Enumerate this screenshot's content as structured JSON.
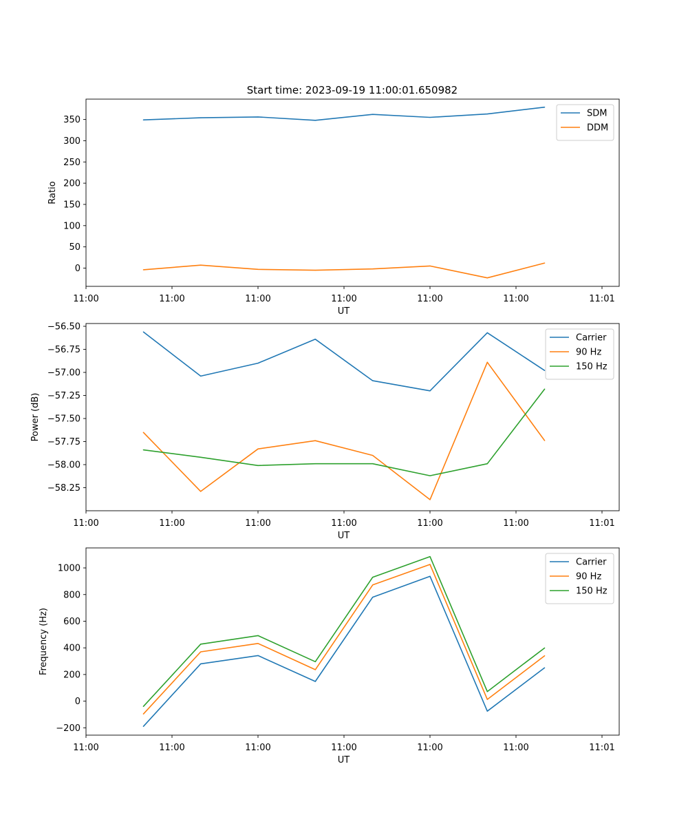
{
  "figure_title": "Start time: 2023-09-19 11:00:01.650982",
  "colors": {
    "blue": "#1f77b4",
    "orange": "#ff7f0e",
    "green": "#2ca02c"
  },
  "chart_data": [
    {
      "type": "line",
      "title": "Start time: 2023-09-19 11:00:01.650982",
      "xlabel": "UT",
      "ylabel": "Ratio",
      "x_tick_labels": [
        "11:00",
        "11:00",
        "11:00",
        "11:00",
        "11:00",
        "11:00",
        "11:01"
      ],
      "x": [
        1,
        2,
        3,
        4,
        5,
        6,
        7,
        8
      ],
      "xlim": [
        0,
        9.3
      ],
      "x_tick_values": [
        0,
        1.5,
        3,
        4.5,
        6,
        7.5,
        9
      ],
      "ylim": [
        -43,
        398
      ],
      "y_ticks": [
        0,
        50,
        100,
        150,
        200,
        250,
        300,
        350
      ],
      "y_tick_labels": [
        "0",
        "50",
        "100",
        "150",
        "200",
        "250",
        "300",
        "350"
      ],
      "legend": "top-right",
      "series": [
        {
          "name": "SDM",
          "color": "#1f77b4",
          "values": [
            349,
            354,
            356,
            348,
            362,
            355,
            363,
            379
          ]
        },
        {
          "name": "DDM",
          "color": "#ff7f0e",
          "values": [
            -4,
            7,
            -3,
            -5,
            -2,
            5,
            -23,
            12
          ]
        }
      ]
    },
    {
      "type": "line",
      "xlabel": "UT",
      "ylabel": "Power (dB)",
      "x_tick_labels": [
        "11:00",
        "11:00",
        "11:00",
        "11:00",
        "11:00",
        "11:00",
        "11:01"
      ],
      "x": [
        1,
        2,
        3,
        4,
        5,
        6,
        7,
        8
      ],
      "xlim": [
        0,
        9.3
      ],
      "x_tick_values": [
        0,
        1.5,
        3,
        4.5,
        6,
        7.5,
        9
      ],
      "ylim": [
        -58.5,
        -56.47
      ],
      "y_ticks": [
        -58.25,
        -58.0,
        -57.75,
        -57.5,
        -57.25,
        -57.0,
        -56.75,
        -56.5
      ],
      "y_tick_labels": [
        "−58.25",
        "−58.00",
        "−57.75",
        "−57.50",
        "−57.25",
        "−57.00",
        "−56.75",
        "−56.50"
      ],
      "legend": "top-right",
      "series": [
        {
          "name": "Carrier",
          "color": "#1f77b4",
          "values": [
            -56.56,
            -57.04,
            -56.9,
            -56.64,
            -57.09,
            -57.2,
            -56.57,
            -56.98
          ]
        },
        {
          "name": "90 Hz",
          "color": "#ff7f0e",
          "values": [
            -57.65,
            -58.29,
            -57.83,
            -57.74,
            -57.9,
            -58.38,
            -56.89,
            -57.74
          ]
        },
        {
          "name": "150 Hz",
          "color": "#2ca02c",
          "values": [
            -57.84,
            -57.92,
            -58.01,
            -57.99,
            -57.99,
            -58.12,
            -57.99,
            -57.18
          ]
        }
      ]
    },
    {
      "type": "line",
      "xlabel": "UT",
      "ylabel": "Frequency (Hz)",
      "x_tick_labels": [
        "11:00",
        "11:00",
        "11:00",
        "11:00",
        "11:00",
        "11:00",
        "11:01"
      ],
      "x": [
        1,
        2,
        3,
        4,
        5,
        6,
        7,
        8
      ],
      "xlim": [
        0,
        9.3
      ],
      "x_tick_values": [
        0,
        1.5,
        3,
        4.5,
        6,
        7.5,
        9
      ],
      "ylim": [
        -255,
        1150
      ],
      "y_ticks": [
        -200,
        0,
        200,
        400,
        600,
        800,
        1000
      ],
      "y_tick_labels": [
        "−200",
        "0",
        "200",
        "400",
        "600",
        "800",
        "1000"
      ],
      "legend": "top-right",
      "series": [
        {
          "name": "Carrier",
          "color": "#1f77b4",
          "values": [
            -190,
            280,
            342,
            148,
            780,
            937,
            -75,
            251
          ]
        },
        {
          "name": "90 Hz",
          "color": "#ff7f0e",
          "values": [
            -97,
            370,
            433,
            236,
            872,
            1026,
            13,
            341
          ]
        },
        {
          "name": "150 Hz",
          "color": "#2ca02c",
          "values": [
            -40,
            428,
            492,
            296,
            930,
            1085,
            72,
            400
          ]
        }
      ]
    }
  ]
}
